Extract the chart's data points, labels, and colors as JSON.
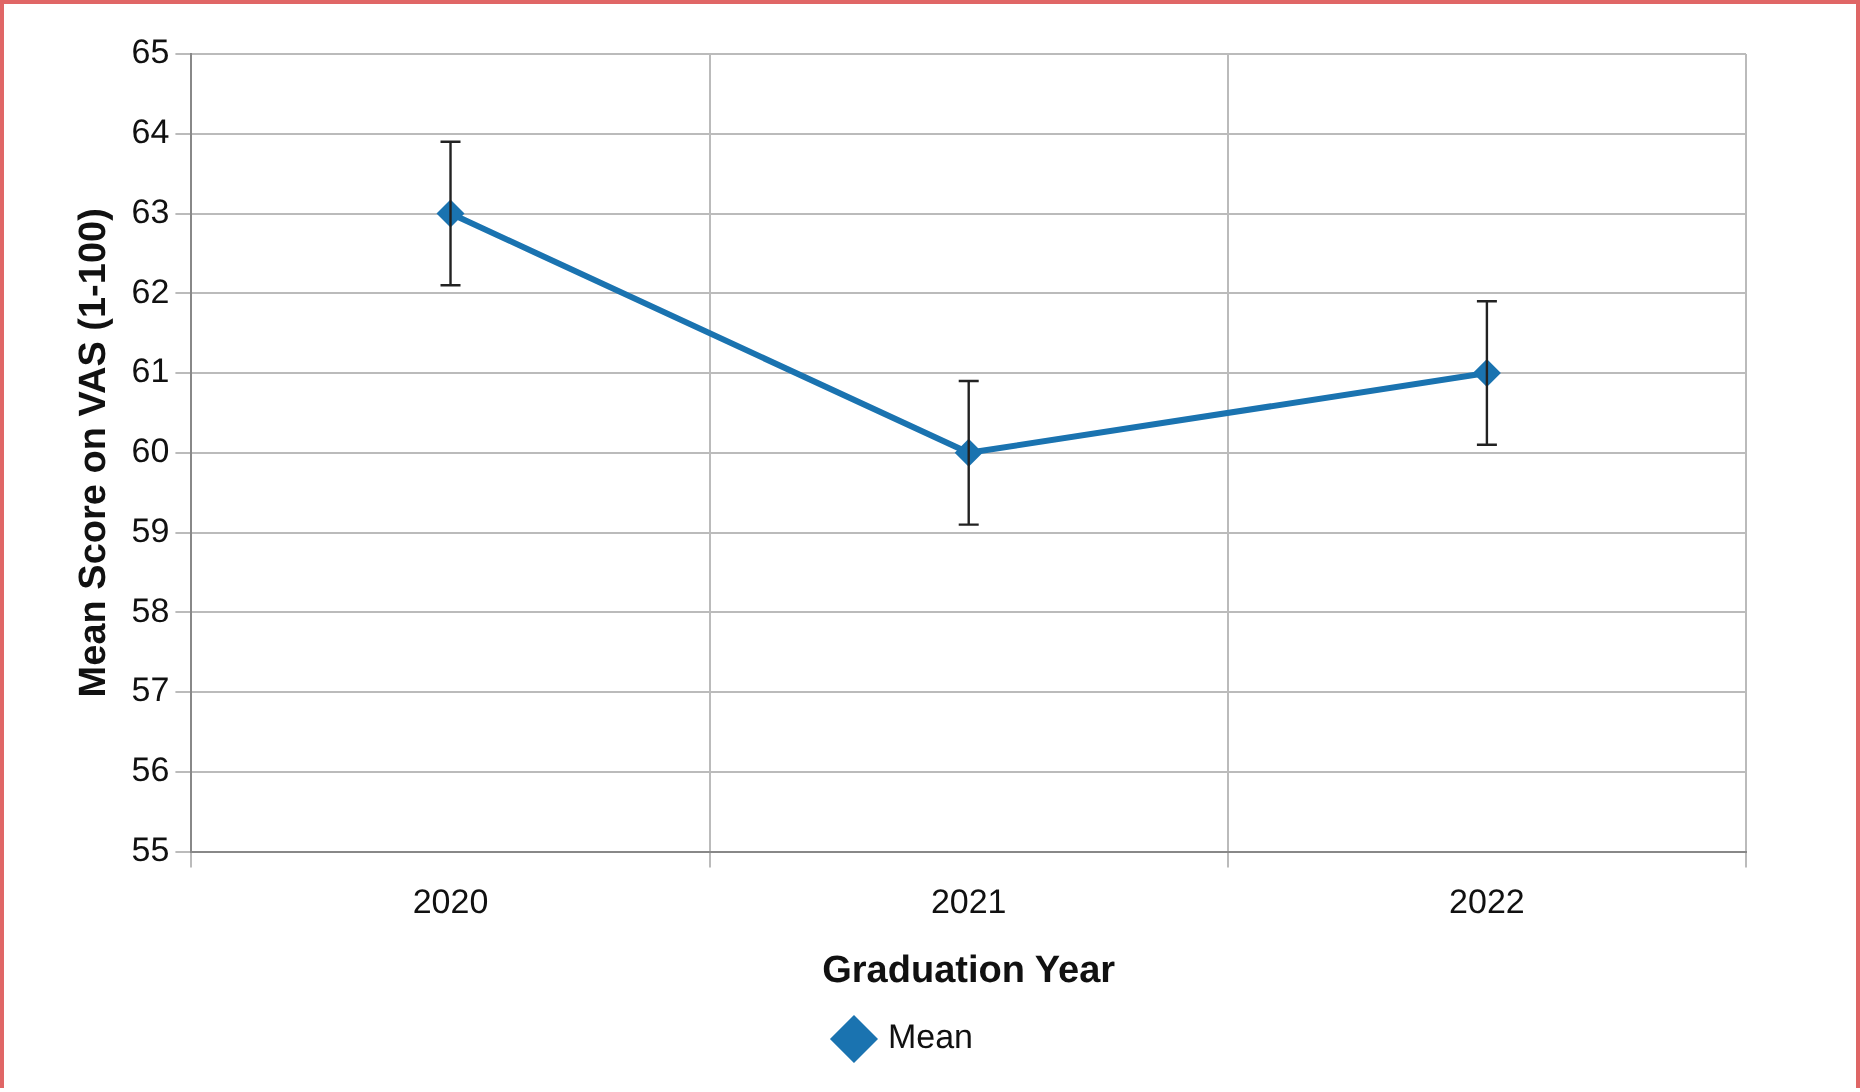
{
  "chart_data": {
    "type": "line",
    "xlabel": "Graduation Year",
    "ylabel": "Mean Score on VAS (1-100)",
    "categories": [
      "2020",
      "2021",
      "2022"
    ],
    "series": [
      {
        "name": "Mean",
        "color": "#1a73b0",
        "values": [
          63,
          60,
          61
        ],
        "errors": [
          0.9,
          0.9,
          0.9
        ]
      }
    ],
    "ylim": [
      55,
      65
    ],
    "yticks": [
      55,
      56,
      57,
      58,
      59,
      60,
      61,
      62,
      63,
      64,
      65
    ],
    "grid": true,
    "legend": "bottom",
    "marker": "diamond",
    "line_style": "solid"
  }
}
